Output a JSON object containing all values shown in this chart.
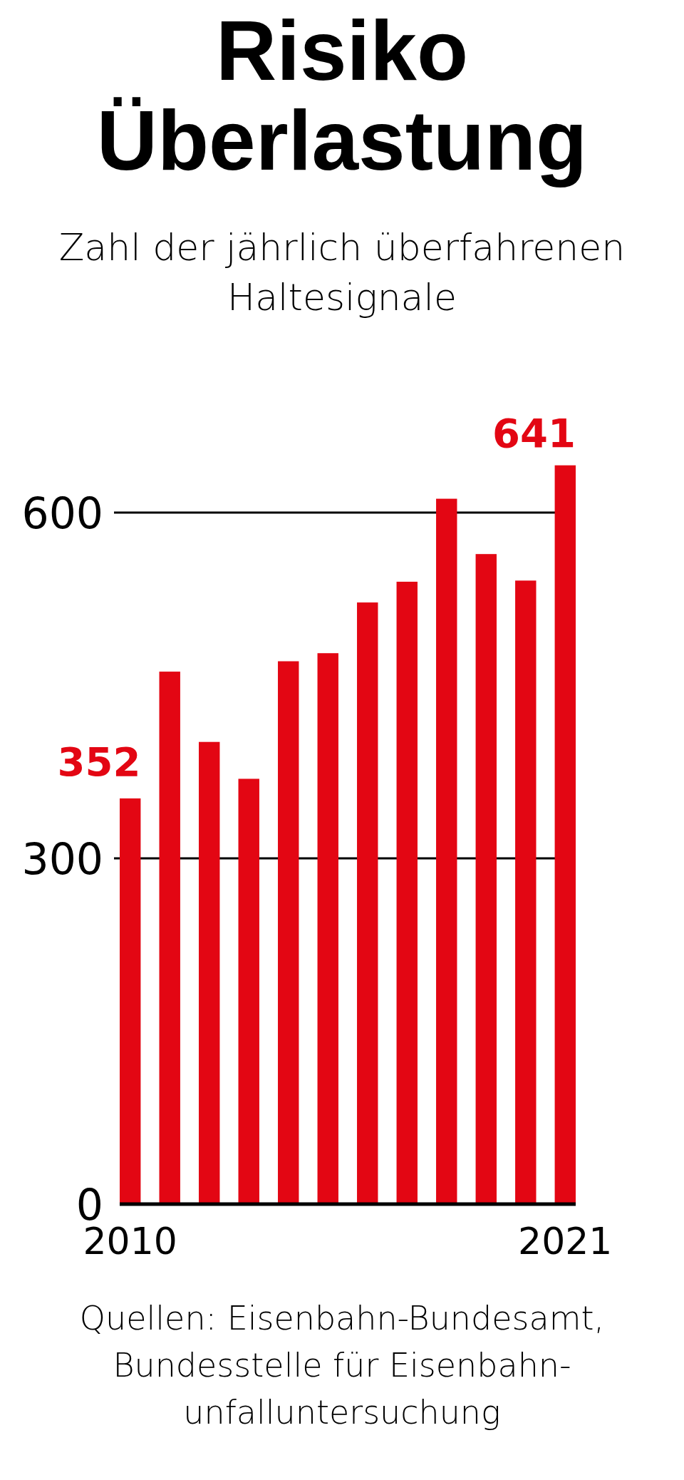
{
  "chart_data": {
    "type": "bar",
    "title": "Risiko\nÜberlastung",
    "subtitle": "Zahl der jährlich überfahrenen\nHaltesignale",
    "categories": [
      "2010",
      null,
      null,
      null,
      null,
      null,
      null,
      null,
      null,
      null,
      null,
      "2021"
    ],
    "series": [
      {
        "color": "#e30613",
        "values": [
          352,
          462,
          401,
          369,
          471,
          478,
          522,
          540,
          612,
          564,
          541,
          641
        ],
        "value_labels": [
          "352",
          null,
          null,
          null,
          null,
          null,
          null,
          null,
          null,
          null,
          null,
          "641"
        ]
      }
    ],
    "ylim": [
      0,
      641
    ],
    "yticks": [
      0,
      300,
      600
    ],
    "grid": "y",
    "annotations": [
      "Quellen: Eisenbahn-Bundesamt,\nBundesstelle für Eisenbahn-\nunfalluntersuchung"
    ]
  }
}
